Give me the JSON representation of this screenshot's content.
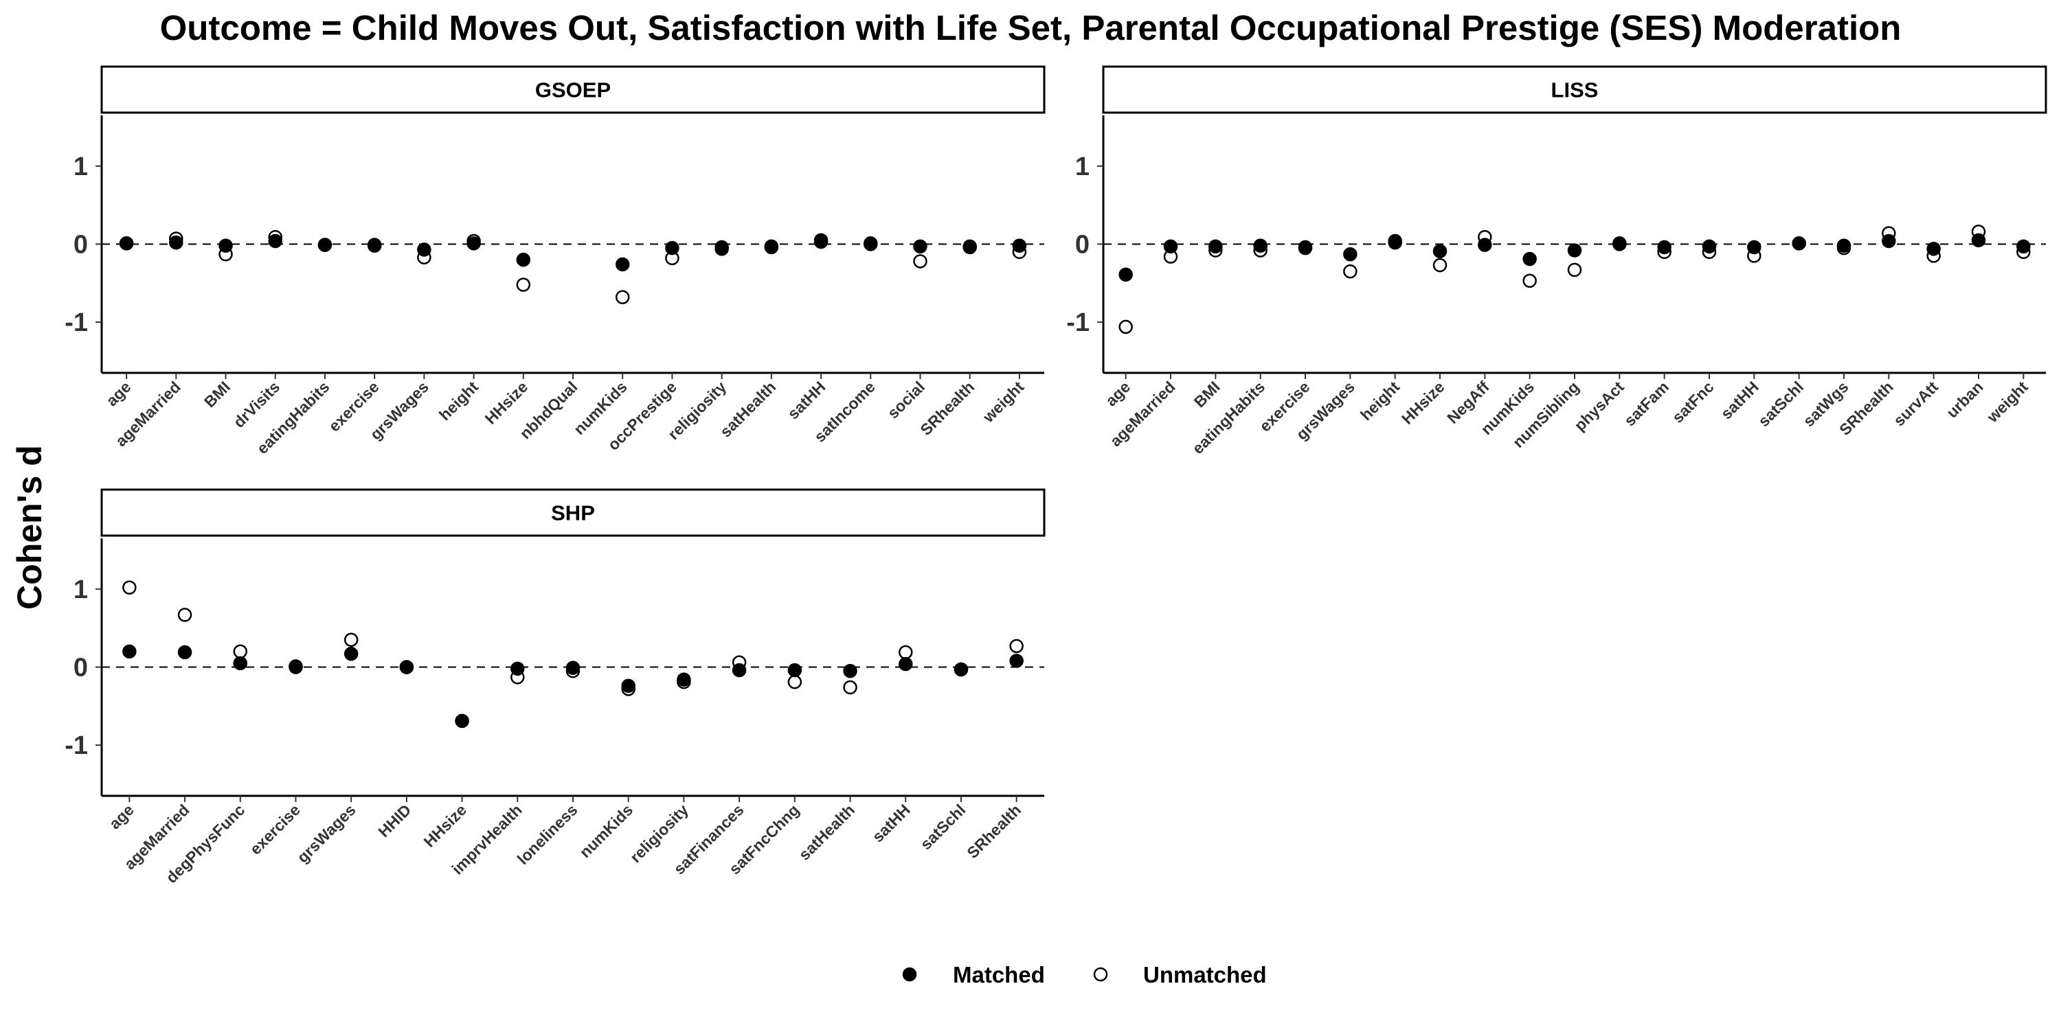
{
  "chart_data": {
    "type": "scatter",
    "title": "Outcome = Child Moves Out, Satisfaction with Life Set, Parental Occupational Prestige (SES) Moderation",
    "ylabel": "Cohen's d",
    "ylim": [
      -1.65,
      1.65
    ],
    "yticks": [
      "1",
      "0",
      "-1"
    ],
    "yticks_values": [
      1,
      0,
      -1
    ],
    "reference_line": 0,
    "legend": {
      "position": "bottom",
      "entries": [
        {
          "label": "Matched",
          "marker": "filled-circle"
        },
        {
          "label": "Unmatched",
          "marker": "open-circle"
        }
      ]
    },
    "panels": [
      {
        "name": "GSOEP",
        "categories": [
          "age",
          "ageMarried",
          "BMI",
          "drVisits",
          "eatingHabits",
          "exercise",
          "grsWages",
          "height",
          "HHsize",
          "nbhdQual",
          "numKids",
          "occPrestige",
          "religiosity",
          "satHealth",
          "satHH",
          "satIncome",
          "social",
          "SRhealth",
          "weight"
        ],
        "series": [
          {
            "name": "Matched",
            "values": [
              0.01,
              0.02,
              -0.02,
              0.04,
              -0.01,
              -0.01,
              -0.07,
              0.01,
              -0.2,
              null,
              -0.26,
              -0.05,
              -0.04,
              -0.03,
              0.03,
              0.01,
              -0.03,
              -0.03,
              -0.02
            ]
          },
          {
            "name": "Unmatched",
            "values": [
              0.01,
              0.07,
              -0.13,
              0.09,
              -0.01,
              -0.02,
              -0.17,
              0.04,
              -0.52,
              null,
              -0.68,
              -0.18,
              -0.06,
              -0.04,
              0.05,
              0.0,
              -0.22,
              -0.04,
              -0.1
            ]
          }
        ]
      },
      {
        "name": "LISS",
        "categories": [
          "age",
          "ageMarried",
          "BMI",
          "eatingHabits",
          "exercise",
          "grsWages",
          "height",
          "HHsize",
          "NegAff",
          "numKids",
          "numSibling",
          "physAct",
          "satFam",
          "satFnc",
          "satHH",
          "satSchl",
          "satWgs",
          "SRhealth",
          "survAtt",
          "urban",
          "weight"
        ],
        "series": [
          {
            "name": "Matched",
            "values": [
              -0.39,
              -0.03,
              -0.03,
              -0.02,
              -0.04,
              -0.13,
              0.02,
              -0.09,
              -0.01,
              -0.19,
              -0.08,
              0.0,
              -0.04,
              -0.03,
              -0.04,
              0.01,
              -0.02,
              0.04,
              -0.06,
              0.05,
              -0.03
            ]
          },
          {
            "name": "Unmatched",
            "values": [
              -1.06,
              -0.16,
              -0.08,
              -0.08,
              -0.05,
              -0.35,
              0.04,
              -0.27,
              0.09,
              -0.47,
              -0.33,
              0.01,
              -0.1,
              -0.1,
              -0.15,
              0.01,
              -0.05,
              0.14,
              -0.15,
              0.16,
              -0.1
            ]
          }
        ]
      },
      {
        "name": "SHP",
        "categories": [
          "age",
          "ageMarried",
          "degPhysFunc",
          "exercise",
          "grsWages",
          "HHID",
          "HHsize",
          "imprvHealth",
          "loneliness",
          "numKids",
          "religiosity",
          "satFinances",
          "satFncChng",
          "satHealth",
          "satHH",
          "satSchl",
          "SRhealth"
        ],
        "series": [
          {
            "name": "Matched",
            "values": [
              0.2,
              0.19,
              0.05,
              0.0,
              0.17,
              0.0,
              -0.69,
              -0.02,
              -0.01,
              -0.24,
              -0.16,
              -0.04,
              -0.04,
              -0.05,
              0.04,
              -0.03,
              0.08
            ]
          },
          {
            "name": "Unmatched",
            "values": [
              1.02,
              0.67,
              0.2,
              0.01,
              0.35,
              0.0,
              -0.69,
              -0.13,
              -0.05,
              -0.28,
              -0.19,
              0.06,
              -0.19,
              -0.26,
              0.19,
              -0.03,
              0.27
            ]
          }
        ]
      }
    ]
  }
}
